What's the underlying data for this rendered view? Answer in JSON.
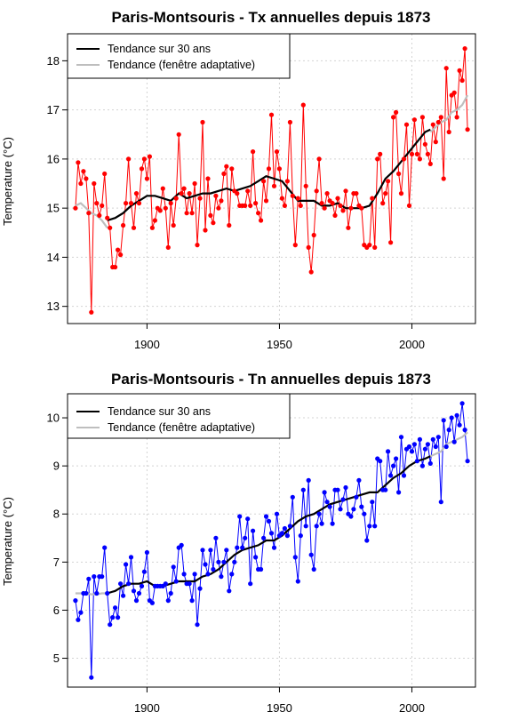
{
  "chart_data": [
    {
      "type": "line",
      "title": "Paris-Montsouris - Tx annuelles depuis 1873",
      "xlabel": "",
      "ylabel": "Temperature (°C)",
      "xlim": [
        1870,
        2024
      ],
      "ylim": [
        12.65,
        18.55
      ],
      "xticks": [
        1900,
        1950,
        2000
      ],
      "yticks": [
        13,
        14,
        15,
        16,
        17,
        18
      ],
      "grid": true,
      "legend_position": "top-left",
      "legend": [
        {
          "label": "Tendance sur 30 ans",
          "color": "#000000"
        },
        {
          "label": "Tendance (fenêtre adaptative)",
          "color": "#bebebe"
        }
      ],
      "series": [
        {
          "name": "",
          "kind": "points",
          "color": "#ff0000",
          "x": [
            1873,
            1874,
            1875,
            1876,
            1877,
            1878,
            1879,
            1880,
            1881,
            1882,
            1883,
            1884,
            1885,
            1886,
            1887,
            1888,
            1889,
            1890,
            1891,
            1892,
            1893,
            1894,
            1895,
            1896,
            1897,
            1898,
            1899,
            1900,
            1901,
            1902,
            1903,
            1904,
            1905,
            1906,
            1907,
            1908,
            1909,
            1910,
            1911,
            1912,
            1913,
            1914,
            1915,
            1916,
            1917,
            1918,
            1919,
            1920,
            1921,
            1922,
            1923,
            1924,
            1925,
            1926,
            1927,
            1928,
            1929,
            1930,
            1931,
            1932,
            1933,
            1934,
            1935,
            1936,
            1937,
            1938,
            1939,
            1940,
            1941,
            1942,
            1943,
            1944,
            1945,
            1946,
            1947,
            1948,
            1949,
            1950,
            1951,
            1952,
            1953,
            1954,
            1955,
            1956,
            1957,
            1958,
            1959,
            1960,
            1961,
            1962,
            1963,
            1964,
            1965,
            1966,
            1967,
            1968,
            1969,
            1970,
            1971,
            1972,
            1973,
            1974,
            1975,
            1976,
            1977,
            1978,
            1979,
            1980,
            1981,
            1982,
            1983,
            1984,
            1985,
            1986,
            1987,
            1988,
            1989,
            1990,
            1991,
            1992,
            1993,
            1994,
            1995,
            1996,
            1997,
            1998,
            1999,
            2000,
            2001,
            2002,
            2003,
            2004,
            2005,
            2006,
            2007,
            2008,
            2009,
            2010,
            2011,
            2012,
            2013,
            2014,
            2015,
            2016,
            2017,
            2018,
            2019,
            2020,
            2021
          ],
          "y": [
            15.0,
            15.93,
            15.5,
            15.75,
            15.6,
            14.9,
            12.88,
            15.5,
            15.1,
            14.85,
            15.05,
            15.7,
            14.8,
            14.6,
            13.8,
            13.8,
            14.15,
            14.05,
            14.65,
            15.1,
            16.0,
            15.1,
            14.6,
            15.3,
            15.1,
            15.8,
            16.0,
            15.6,
            16.05,
            14.6,
            14.75,
            15.0,
            14.95,
            15.4,
            15.0,
            14.2,
            15.1,
            14.65,
            15.2,
            16.5,
            15.3,
            15.4,
            14.9,
            15.3,
            14.9,
            15.5,
            14.25,
            15.2,
            16.75,
            14.55,
            15.6,
            14.85,
            14.7,
            15.25,
            15.0,
            15.15,
            15.7,
            15.85,
            14.65,
            15.8,
            15.35,
            15.3,
            15.05,
            15.05,
            15.05,
            15.35,
            15.05,
            16.15,
            15.1,
            14.9,
            14.75,
            15.55,
            15.15,
            15.8,
            16.9,
            15.45,
            16.15,
            15.8,
            15.2,
            15.05,
            15.55,
            16.75,
            15.25,
            14.25,
            15.2,
            15.05,
            17.1,
            15.45,
            14.2,
            13.7,
            14.45,
            15.35,
            16.0,
            15.1,
            15.0,
            15.3,
            15.15,
            15.1,
            14.85,
            15.2,
            15.05,
            14.95,
            15.35,
            14.6,
            15.0,
            15.3,
            15.3,
            15.05,
            15.0,
            14.25,
            14.2,
            14.25,
            15.2,
            14.2,
            16.0,
            16.1,
            15.1,
            15.3,
            15.55,
            14.3,
            16.85,
            16.95,
            15.7,
            15.3,
            16.0,
            16.7,
            15.05,
            16.1,
            16.8,
            16.1,
            16.0,
            16.85,
            16.3,
            16.1,
            15.9,
            16.7,
            16.35,
            16.75,
            16.85,
            15.6,
            17.85,
            16.55,
            17.3,
            17.35,
            16.85,
            17.8,
            17.6,
            18.25,
            16.6
          ]
        },
        {
          "name": "Tendance sur 30 ans",
          "kind": "line",
          "color": "#000000",
          "x": [
            1885,
            1888,
            1891,
            1894,
            1897,
            1900,
            1903,
            1906,
            1909,
            1912,
            1915,
            1918,
            1921,
            1924,
            1927,
            1930,
            1933,
            1936,
            1939,
            1942,
            1945,
            1948,
            1951,
            1954,
            1957,
            1960,
            1963,
            1966,
            1969,
            1972,
            1975,
            1978,
            1981,
            1984,
            1987,
            1990,
            1993,
            1996,
            1999,
            2002,
            2005,
            2007
          ],
          "y": [
            14.75,
            14.8,
            14.9,
            15.05,
            15.15,
            15.25,
            15.25,
            15.2,
            15.15,
            15.3,
            15.2,
            15.25,
            15.3,
            15.3,
            15.35,
            15.4,
            15.35,
            15.4,
            15.45,
            15.55,
            15.65,
            15.6,
            15.55,
            15.35,
            15.15,
            15.15,
            15.15,
            15.05,
            15.05,
            15.1,
            15.0,
            15.0,
            15.0,
            15.05,
            15.3,
            15.6,
            15.75,
            15.95,
            16.15,
            16.35,
            16.55,
            16.6
          ]
        },
        {
          "name": "Tendance (fenêtre adaptative)",
          "kind": "line",
          "color": "#bebebe",
          "x": [
            1873,
            1875,
            1877,
            1879,
            1881,
            1883,
            1885,
            2007,
            2009,
            2011,
            2013,
            2015,
            2017,
            2019,
            2021
          ],
          "y": [
            15.05,
            15.1,
            15.0,
            14.9,
            14.85,
            14.75,
            14.6,
            16.55,
            16.65,
            16.75,
            16.8,
            16.95,
            17.0,
            17.1,
            17.3
          ]
        }
      ]
    },
    {
      "type": "line",
      "title": "Paris-Montsouris - Tn annuelles depuis 1873",
      "xlabel": "",
      "ylabel": "Temperature (°C)",
      "xlim": [
        1870,
        2024
      ],
      "ylim": [
        4.4,
        10.5
      ],
      "xticks": [
        1900,
        1950,
        2000
      ],
      "yticks": [
        5,
        6,
        7,
        8,
        9,
        10
      ],
      "grid": true,
      "legend_position": "top-left",
      "legend": [
        {
          "label": "Tendance sur 30 ans",
          "color": "#000000"
        },
        {
          "label": "Tendance (fenêtre adaptative)",
          "color": "#bebebe"
        }
      ],
      "series": [
        {
          "name": "",
          "kind": "points",
          "color": "#0000ff",
          "x": [
            1873,
            1874,
            1875,
            1876,
            1877,
            1878,
            1879,
            1880,
            1881,
            1882,
            1883,
            1884,
            1885,
            1886,
            1887,
            1888,
            1889,
            1890,
            1891,
            1892,
            1893,
            1894,
            1895,
            1896,
            1897,
            1898,
            1899,
            1900,
            1901,
            1902,
            1903,
            1904,
            1905,
            1906,
            1907,
            1908,
            1909,
            1910,
            1911,
            1912,
            1913,
            1914,
            1915,
            1916,
            1917,
            1918,
            1919,
            1920,
            1921,
            1922,
            1923,
            1924,
            1925,
            1926,
            1927,
            1928,
            1929,
            1930,
            1931,
            1932,
            1933,
            1934,
            1935,
            1936,
            1937,
            1938,
            1939,
            1940,
            1941,
            1942,
            1943,
            1944,
            1945,
            1946,
            1947,
            1948,
            1949,
            1950,
            1951,
            1952,
            1953,
            1954,
            1955,
            1956,
            1957,
            1958,
            1959,
            1960,
            1961,
            1962,
            1963,
            1964,
            1965,
            1966,
            1967,
            1968,
            1969,
            1970,
            1971,
            1972,
            1973,
            1974,
            1975,
            1976,
            1977,
            1978,
            1979,
            1980,
            1981,
            1982,
            1983,
            1984,
            1985,
            1986,
            1987,
            1988,
            1989,
            1990,
            1991,
            1992,
            1993,
            1994,
            1995,
            1996,
            1997,
            1998,
            1999,
            2000,
            2001,
            2002,
            2003,
            2004,
            2005,
            2006,
            2007,
            2008,
            2009,
            2010,
            2011,
            2012,
            2013,
            2014,
            2015,
            2016,
            2017,
            2018,
            2019,
            2020,
            2021
          ],
          "y": [
            6.2,
            5.8,
            5.95,
            6.35,
            6.35,
            6.65,
            4.6,
            6.7,
            6.35,
            6.7,
            6.7,
            7.3,
            6.35,
            5.7,
            5.85,
            6.05,
            5.85,
            6.55,
            6.3,
            6.95,
            6.55,
            7.1,
            6.4,
            6.2,
            6.35,
            6.5,
            6.8,
            7.2,
            6.2,
            6.15,
            6.5,
            6.5,
            6.5,
            6.5,
            6.55,
            6.2,
            6.35,
            6.9,
            6.6,
            7.3,
            7.35,
            6.75,
            6.55,
            6.55,
            6.2,
            6.75,
            5.7,
            6.45,
            7.25,
            6.95,
            6.75,
            7.25,
            6.85,
            7.5,
            7.0,
            6.7,
            7.0,
            7.25,
            6.4,
            6.75,
            7.0,
            7.3,
            7.95,
            7.3,
            7.5,
            7.9,
            6.55,
            7.65,
            7.1,
            6.85,
            6.85,
            7.5,
            7.95,
            7.85,
            7.6,
            7.3,
            8.0,
            7.55,
            7.6,
            7.7,
            7.55,
            7.75,
            8.35,
            7.1,
            6.6,
            7.55,
            8.5,
            7.75,
            8.7,
            7.15,
            6.85,
            7.75,
            8.0,
            7.8,
            8.45,
            8.25,
            8.15,
            7.8,
            8.5,
            8.5,
            8.1,
            8.3,
            8.55,
            8.0,
            7.95,
            8.1,
            8.35,
            8.7,
            8.15,
            8.0,
            7.45,
            7.75,
            8.25,
            7.75,
            9.15,
            9.1,
            8.5,
            8.5,
            9.3,
            8.8,
            9.0,
            9.15,
            8.45,
            9.6,
            8.8,
            9.35,
            9.4,
            9.3,
            9.45,
            9.1,
            9.55,
            9.0,
            9.35,
            9.45,
            9.05,
            9.55,
            9.4,
            9.6,
            8.25,
            9.95,
            9.4,
            9.75,
            10.0,
            9.5,
            10.05,
            9.85,
            10.3,
            9.75,
            9.1
          ]
        },
        {
          "name": "Tendance sur 30 ans",
          "kind": "line",
          "color": "#000000",
          "x": [
            1885,
            1888,
            1891,
            1894,
            1897,
            1900,
            1903,
            1906,
            1909,
            1912,
            1915,
            1918,
            1921,
            1924,
            1927,
            1930,
            1933,
            1936,
            1939,
            1942,
            1945,
            1948,
            1951,
            1954,
            1957,
            1960,
            1963,
            1966,
            1969,
            1972,
            1975,
            1978,
            1981,
            1984,
            1987,
            1990,
            1993,
            1996,
            1999,
            2002,
            2005,
            2007
          ],
          "y": [
            6.35,
            6.4,
            6.5,
            6.55,
            6.55,
            6.6,
            6.5,
            6.5,
            6.55,
            6.6,
            6.6,
            6.6,
            6.7,
            6.75,
            6.85,
            7.0,
            7.15,
            7.25,
            7.3,
            7.35,
            7.45,
            7.45,
            7.55,
            7.7,
            7.85,
            7.95,
            8.0,
            8.1,
            8.2,
            8.25,
            8.3,
            8.35,
            8.4,
            8.45,
            8.45,
            8.6,
            8.75,
            8.85,
            9.0,
            9.1,
            9.15,
            9.2
          ]
        },
        {
          "name": "Tendance (fenêtre adaptative)",
          "kind": "line",
          "color": "#bebebe",
          "x": [
            1873,
            1875,
            1877,
            1879,
            1881,
            1883,
            1885,
            2007,
            2009,
            2011,
            2013,
            2015,
            2017,
            2019,
            2021
          ],
          "y": [
            6.35,
            6.35,
            6.35,
            6.33,
            6.33,
            6.35,
            6.35,
            9.2,
            9.25,
            9.3,
            9.45,
            9.5,
            9.55,
            9.6,
            9.7
          ]
        }
      ]
    }
  ]
}
